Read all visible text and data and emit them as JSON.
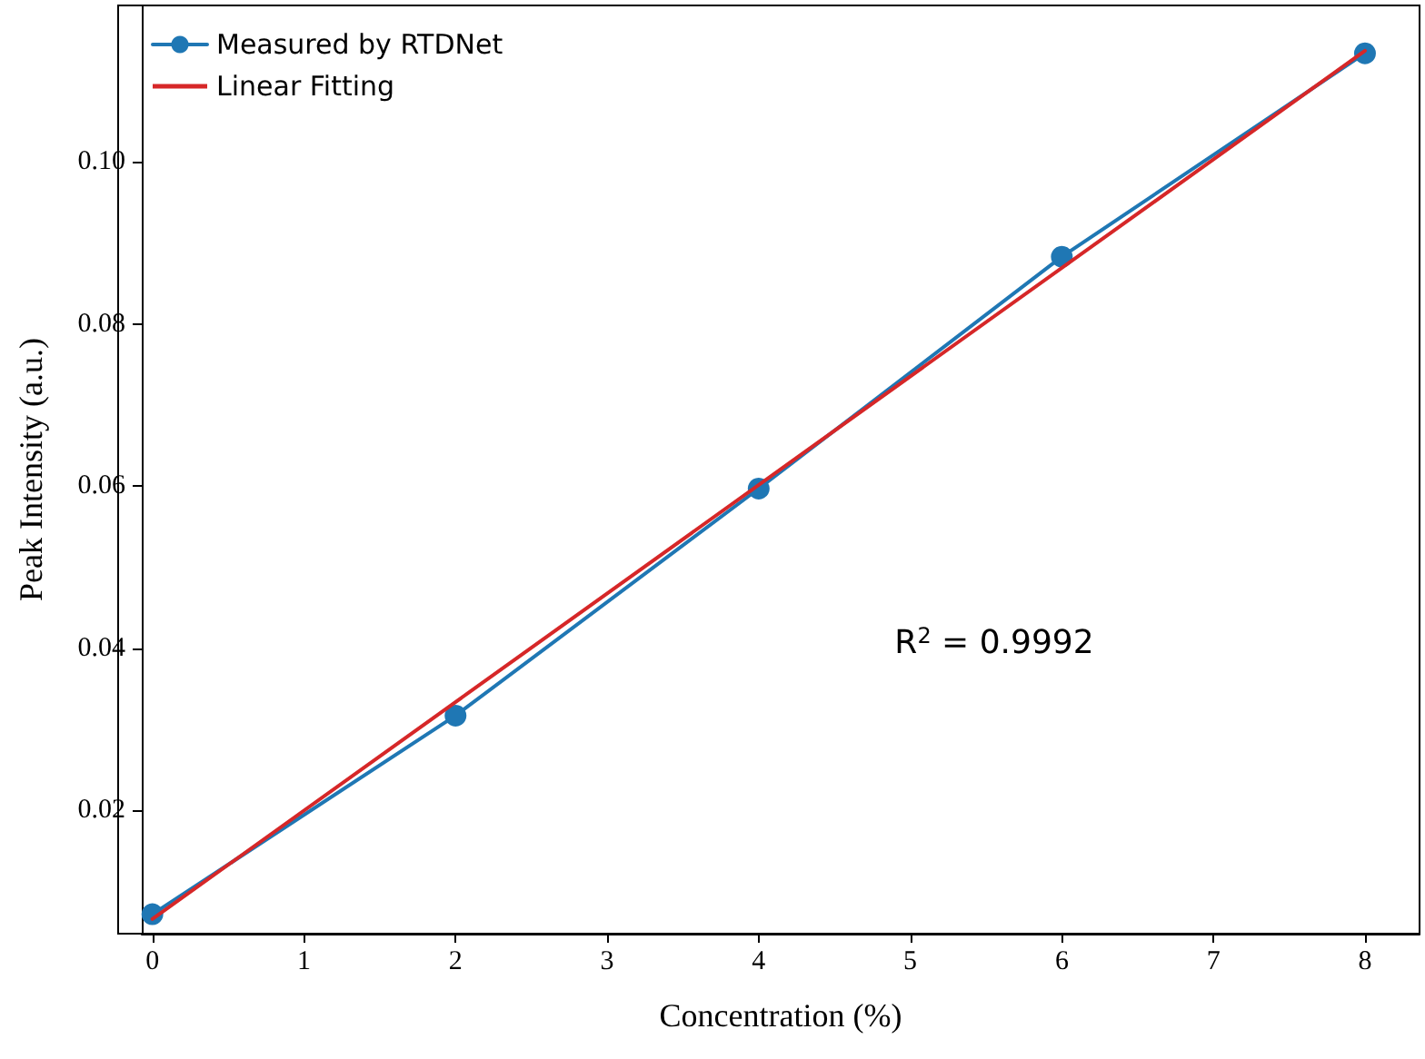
{
  "chart_data": {
    "type": "line",
    "xlabel": "Concentration (%)",
    "ylabel": "Peak Intensity (a.u.)",
    "xlim": [
      -0.07,
      8.36
    ],
    "xticks": [
      0,
      1,
      2,
      3,
      4,
      5,
      6,
      7,
      8
    ],
    "ylim": [
      0.0048,
      0.1193
    ],
    "yticks": [
      0.02,
      0.04,
      0.06,
      0.08,
      {
        "value": 0.1,
        "label": "0.10"
      }
    ],
    "legend": "top left",
    "grid": false,
    "series": [
      {
        "name": "Measured by RTDNet",
        "color": "#1f77b4",
        "x": [
          0,
          2,
          4,
          6,
          8
        ],
        "values": [
          0.0072,
          0.0317,
          0.0597,
          0.0883,
          0.1134
        ],
        "marker": "circle"
      },
      {
        "name": "Linear Fitting",
        "color": "#d62728",
        "x": [
          0,
          8
        ],
        "values": [
          0.0066,
          0.1137
        ],
        "marker": "none"
      }
    ],
    "annotations": [
      "R$^{2}$ = 0.9992"
    ]
  }
}
